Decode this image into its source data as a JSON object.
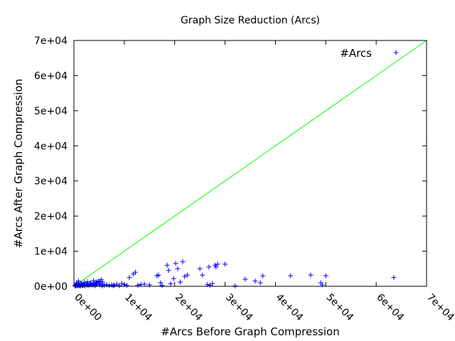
{
  "chart_data": {
    "type": "scatter",
    "title": "Graph Size Reduction (Arcs)",
    "xlabel": "#Arcs Before Graph Compression",
    "ylabel": "#Arcs After Graph Compression",
    "xlim": [
      0,
      70000
    ],
    "ylim": [
      0,
      70000
    ],
    "x_tick_labels": [
      "0e+00",
      "1e+04",
      "2e+04",
      "3e+04",
      "4e+04",
      "5e+04",
      "6e+04",
      "7e+04"
    ],
    "y_tick_labels": [
      "0e+00",
      "1e+04",
      "2e+04",
      "3e+04",
      "4e+04",
      "5e+04",
      "6e+04",
      "7e+04"
    ],
    "x_ticks": [
      0,
      10000,
      20000,
      30000,
      40000,
      50000,
      60000,
      70000
    ],
    "y_ticks": [
      0,
      10000,
      20000,
      30000,
      40000,
      50000,
      60000,
      70000
    ],
    "grid": false,
    "legend_position": "top-right",
    "series": [
      {
        "name": "#Arcs",
        "color": "#0000ff",
        "marker": "plus",
        "x": [
          200,
          300,
          400,
          500,
          600,
          700,
          800,
          900,
          1000,
          1100,
          1200,
          1300,
          1400,
          1500,
          1600,
          1700,
          1800,
          2000,
          2200,
          2400,
          2600,
          2800,
          3000,
          3200,
          3400,
          3600,
          3800,
          4000,
          4200,
          4400,
          4600,
          4800,
          5000,
          5200,
          5400,
          5600,
          6000,
          6500,
          7000,
          7500,
          8000,
          8500,
          9000,
          9500,
          10000,
          10500,
          11000,
          11800,
          12200,
          12700,
          13300,
          14000,
          15000,
          16500,
          16800,
          17200,
          17500,
          18500,
          18800,
          19200,
          19800,
          20200,
          20600,
          21100,
          21600,
          22000,
          22500,
          25000,
          25500,
          26500,
          26800,
          27000,
          27500,
          28000,
          28200,
          28500,
          30000,
          32000,
          34000,
          36000,
          37000,
          37500,
          43000,
          47000,
          49000,
          49300,
          50000,
          63500,
          500,
          900,
          1400,
          2100,
          2700,
          3300,
          3900,
          4500,
          5100,
          5700,
          1800,
          4200,
          5600,
          7800
        ],
        "y": [
          100,
          300,
          150,
          500,
          200,
          800,
          100,
          400,
          600,
          200,
          300,
          100,
          500,
          800,
          300,
          200,
          600,
          400,
          150,
          700,
          300,
          500,
          200,
          900,
          400,
          600,
          300,
          800,
          200,
          1200,
          500,
          1500,
          800,
          400,
          1900,
          600,
          300,
          500,
          200,
          400,
          300,
          600,
          200,
          800,
          500,
          300,
          2500,
          3500,
          4000,
          300,
          500,
          600,
          400,
          3000,
          3200,
          1000,
          200,
          6000,
          4500,
          700,
          2200,
          6500,
          5000,
          1200,
          7000,
          2800,
          3200,
          5000,
          3200,
          500,
          5500,
          300,
          800,
          6000,
          5500,
          6300,
          6300,
          100,
          2000,
          1500,
          1000,
          3000,
          3000,
          3200,
          1000,
          400,
          3000,
          2500,
          1000,
          1500,
          700,
          1100,
          1300,
          900,
          1600,
          1000,
          1400,
          1200,
          200,
          300,
          100,
          200
        ]
      },
      {
        "name": "",
        "color": "#00ff00",
        "type": "line",
        "x": [
          0,
          70000
        ],
        "y": [
          0,
          70000
        ]
      }
    ]
  }
}
